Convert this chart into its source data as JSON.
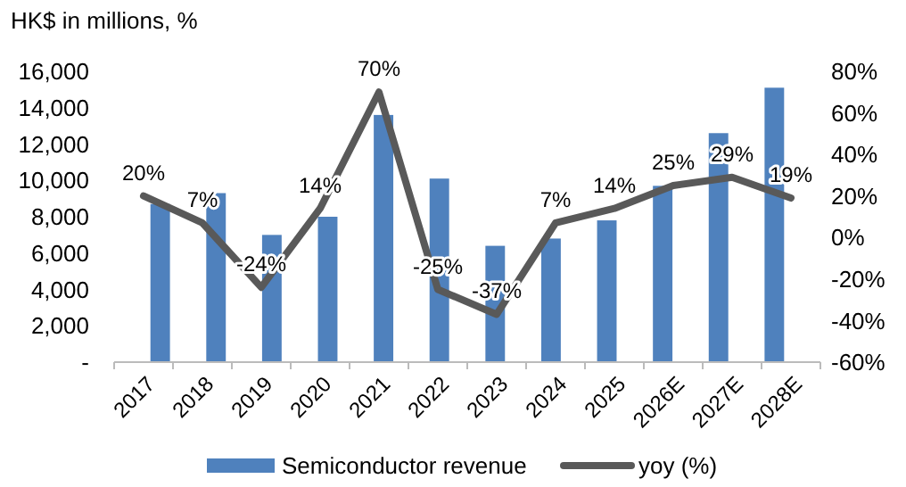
{
  "chart_data": {
    "type": "bar",
    "ylabel": "HK$ in millions, %",
    "categories": [
      "2017",
      "2018",
      "2019",
      "2020",
      "2021",
      "2022",
      "2023",
      "2024",
      "2025",
      "2026E",
      "2027E",
      "2028E"
    ],
    "series": [
      {
        "name": "Semiconductor revenue",
        "color": "#4f81bd",
        "values": [
          8700,
          9300,
          7000,
          8000,
          13600,
          10100,
          6400,
          6800,
          7800,
          9700,
          12600,
          15100
        ]
      },
      {
        "name": "yoy (%)",
        "type": "line",
        "axis": "y2",
        "color": "#595959",
        "values": [
          20,
          7,
          -24,
          14,
          70,
          -25,
          -37,
          7,
          14,
          25,
          29,
          19
        ],
        "value_labels": [
          "20%",
          "7%",
          "-24%",
          "14%",
          "70%",
          "-25%",
          "-37%",
          "7%",
          "14%",
          "25%",
          "29%",
          "19%"
        ]
      }
    ],
    "ylim": [
      0,
      16000
    ],
    "yticks": [
      {
        "value": 0,
        "label": "-"
      },
      {
        "value": 2000,
        "label": "2,000"
      },
      {
        "value": 4000,
        "label": "4,000"
      },
      {
        "value": 6000,
        "label": "6,000"
      },
      {
        "value": 8000,
        "label": "8,000"
      },
      {
        "value": 10000,
        "label": "10,000"
      },
      {
        "value": 12000,
        "label": "12,000"
      },
      {
        "value": 14000,
        "label": "14,000"
      },
      {
        "value": 16000,
        "label": "16,000"
      }
    ],
    "y2lim": [
      -60,
      80
    ],
    "y2ticks": [
      {
        "value": -60,
        "label": "-60%"
      },
      {
        "value": -40,
        "label": "-40%"
      },
      {
        "value": -20,
        "label": "-20%"
      },
      {
        "value": 0,
        "label": "0%"
      },
      {
        "value": 20,
        "label": "20%"
      },
      {
        "value": 40,
        "label": "40%"
      },
      {
        "value": 60,
        "label": "60%"
      },
      {
        "value": 80,
        "label": "80%"
      }
    ],
    "legend": "bottom",
    "grid": false,
    "marker": "none"
  }
}
